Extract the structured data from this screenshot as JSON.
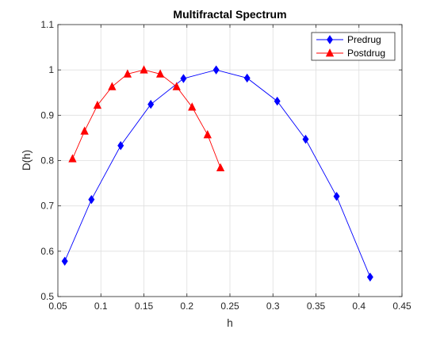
{
  "chart_data": {
    "type": "line",
    "title": "Multifractal Spectrum",
    "xlabel": "h",
    "ylabel": "D(h)",
    "xlim": [
      0.05,
      0.45
    ],
    "ylim": [
      0.5,
      1.1
    ],
    "xticks": [
      "0.05",
      "0.1",
      "0.15",
      "0.2",
      "0.25",
      "0.3",
      "0.35",
      "0.4",
      "0.45"
    ],
    "yticks": [
      "0.5",
      "0.6",
      "0.7",
      "0.8",
      "0.9",
      "1",
      "1.1"
    ],
    "xtick_values": [
      0.05,
      0.1,
      0.15,
      0.2,
      0.25,
      0.3,
      0.35,
      0.4,
      0.45
    ],
    "ytick_values": [
      0.5,
      0.6,
      0.7,
      0.8,
      0.9,
      1.0,
      1.1
    ],
    "grid": true,
    "legend_position": "top-right",
    "series": [
      {
        "name": "Predrug",
        "color": "#0000ff",
        "marker": "diamond",
        "x": [
          0.058,
          0.089,
          0.123,
          0.158,
          0.196,
          0.234,
          0.27,
          0.305,
          0.338,
          0.374,
          0.413
        ],
        "y": [
          0.578,
          0.714,
          0.833,
          0.924,
          0.981,
          1.0,
          0.982,
          0.931,
          0.847,
          0.721,
          0.543
        ]
      },
      {
        "name": "Postdrug",
        "color": "#ff0000",
        "marker": "triangle",
        "x": [
          0.067,
          0.081,
          0.096,
          0.113,
          0.131,
          0.15,
          0.169,
          0.188,
          0.206,
          0.224,
          0.239
        ],
        "y": [
          0.804,
          0.865,
          0.922,
          0.963,
          0.991,
          1.0,
          0.991,
          0.963,
          0.918,
          0.857,
          0.784
        ]
      }
    ]
  }
}
